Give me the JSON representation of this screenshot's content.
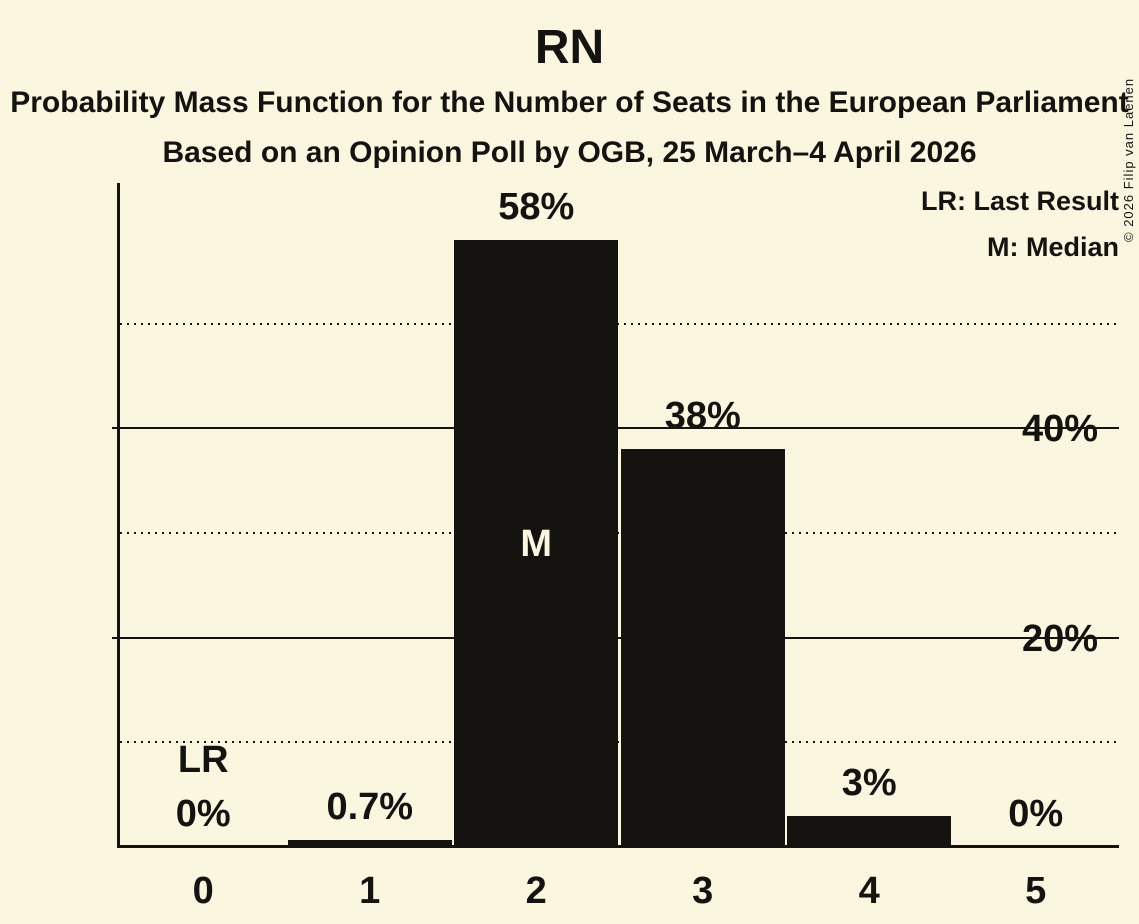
{
  "title": "RN",
  "subtitle": "Probability Mass Function for the Number of Seats in the European Parliament",
  "poll_line": "Based on an Opinion Poll by OGB, 25 March–4 April 2026",
  "copyright": "© 2026 Filip van Laenen",
  "legend": {
    "last_result": "LR: Last Result",
    "median": "M: Median"
  },
  "colors": {
    "background": "#FBF6DF",
    "ink": "#141310"
  },
  "chart_data": {
    "type": "bar",
    "title": "RN",
    "categories": [
      "0",
      "1",
      "2",
      "3",
      "4",
      "5"
    ],
    "values": [
      0,
      0.7,
      58,
      38,
      3,
      0
    ],
    "bar_labels": [
      "0%",
      "0.7%",
      "58%",
      "38%",
      "3%",
      "0%"
    ],
    "ytick_values": [
      20,
      40
    ],
    "ytick_labels": [
      "20%",
      "40%"
    ],
    "dotted_gridline_values": [
      10,
      30,
      50
    ],
    "ylim": [
      0,
      63.4
    ],
    "grid": "horizontal",
    "legend_position": "top-right",
    "median_category": "2",
    "median_marker": "M",
    "last_result_category": "0",
    "last_result_marker": "LR"
  }
}
